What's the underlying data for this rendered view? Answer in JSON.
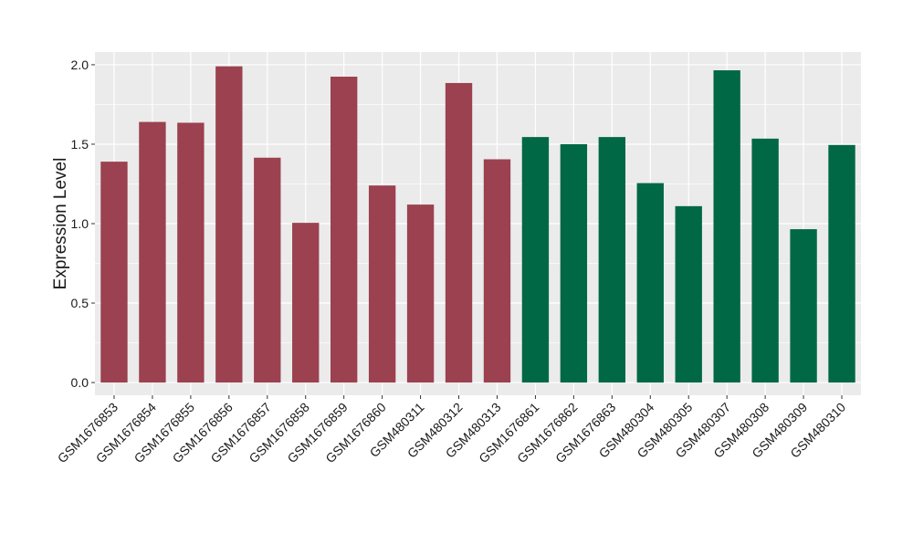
{
  "chart_data": {
    "type": "bar",
    "ylabel": "Expression Level",
    "xlabel": "",
    "ylim": [
      -0.08,
      2.08
    ],
    "yticks": [
      0.0,
      0.5,
      1.0,
      1.5,
      2.0
    ],
    "ytick_labels": [
      "0.0",
      "0.5",
      "1.0",
      "1.5",
      "2.0"
    ],
    "grid": true,
    "panel_background": "#ebebeb",
    "grid_color": "#ffffff",
    "categories": [
      "GSM1676853",
      "GSM1676854",
      "GSM1676855",
      "GSM1676856",
      "GSM1676857",
      "GSM1676858",
      "GSM1676859",
      "GSM1676860",
      "GSM480311",
      "GSM480312",
      "GSM480313",
      "GSM1676861",
      "GSM1676862",
      "GSM1676863",
      "GSM480304",
      "GSM480305",
      "GSM480307",
      "GSM480308",
      "GSM480309",
      "GSM480310"
    ],
    "values": [
      1.39,
      1.64,
      1.635,
      1.99,
      1.415,
      1.005,
      1.925,
      1.24,
      1.12,
      1.885,
      1.405,
      1.545,
      1.5,
      1.545,
      1.255,
      1.11,
      1.965,
      1.535,
      0.965,
      1.495
    ],
    "group_colors": [
      "#9b4150",
      "#006845"
    ],
    "bar_groups": [
      0,
      0,
      0,
      0,
      0,
      0,
      0,
      0,
      0,
      0,
      0,
      1,
      1,
      1,
      1,
      1,
      1,
      1,
      1,
      1
    ]
  }
}
